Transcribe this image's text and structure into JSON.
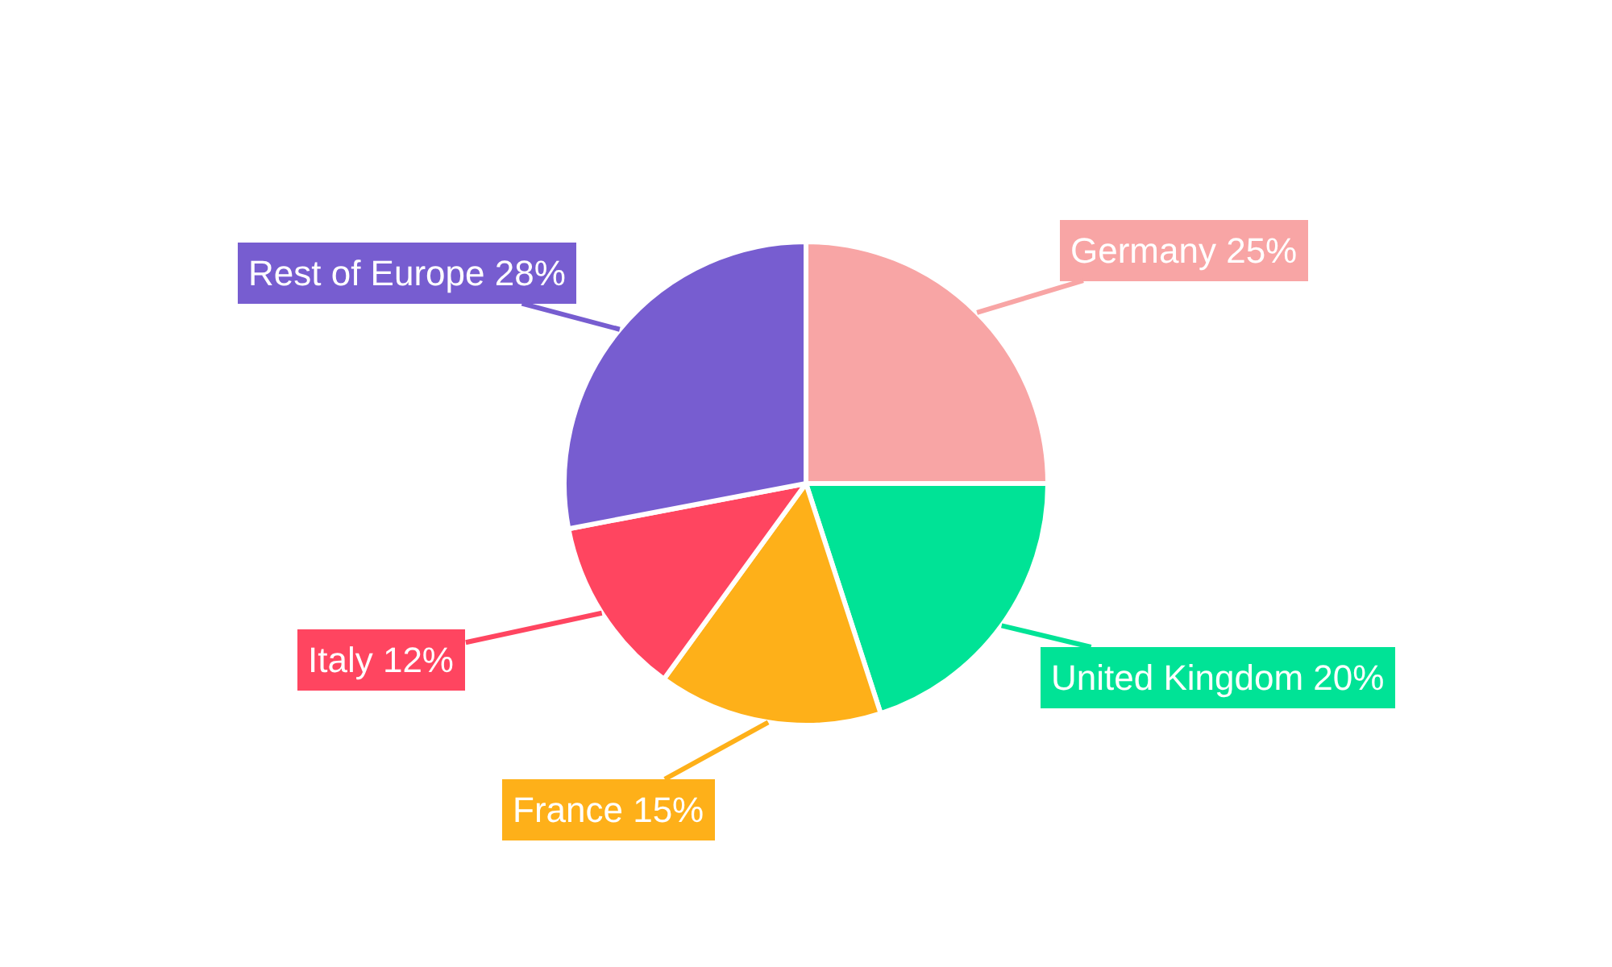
{
  "chart_data": {
    "type": "pie",
    "categories": [
      "Germany",
      "United Kingdom",
      "France",
      "Italy",
      "Rest of Europe"
    ],
    "values": [
      25,
      20,
      15,
      12,
      28
    ],
    "value_labels": [
      "25%",
      "20%",
      "15%",
      "12%",
      "28%"
    ],
    "colors": [
      "#f8a5a5",
      "#00e396",
      "#feb019",
      "#ff4560",
      "#775dd0"
    ],
    "legend": false
  }
}
